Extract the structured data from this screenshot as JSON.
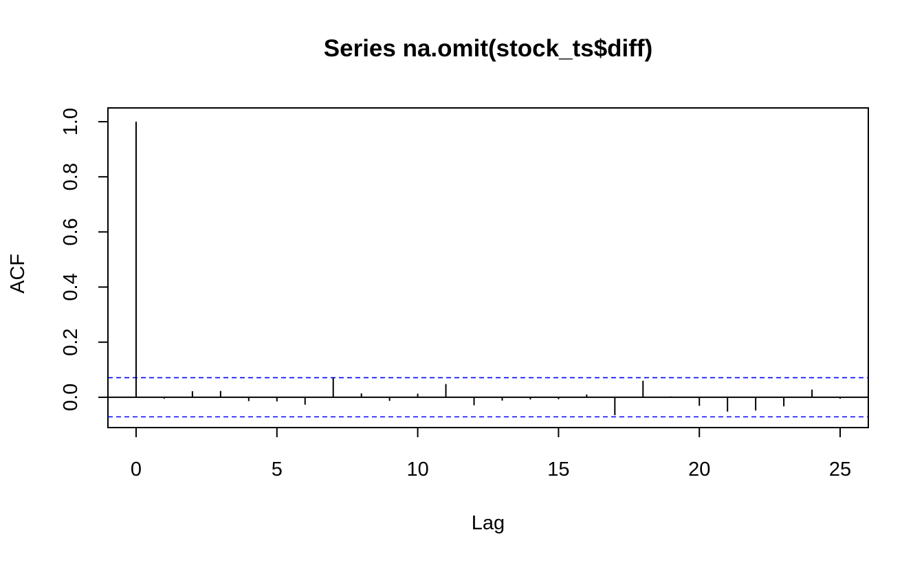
{
  "chart_data": {
    "type": "bar",
    "title": "Series  na.omit(stock_ts$diff)",
    "xlabel": "Lag",
    "ylabel": "ACF",
    "xlim": [
      -1,
      26
    ],
    "ylim": [
      -0.11,
      1.05
    ],
    "x_ticks": [
      0,
      5,
      10,
      15,
      20,
      25
    ],
    "x_tick_labels": [
      "0",
      "5",
      "10",
      "15",
      "20",
      "25"
    ],
    "y_ticks": [
      0.0,
      0.2,
      0.4,
      0.6,
      0.8,
      1.0
    ],
    "y_tick_labels": [
      "0.0",
      "0.2",
      "0.4",
      "0.6",
      "0.8",
      "1.0"
    ],
    "lags": [
      0,
      1,
      2,
      3,
      4,
      5,
      6,
      7,
      8,
      9,
      10,
      11,
      12,
      13,
      14,
      15,
      16,
      17,
      18,
      19,
      20,
      21,
      22,
      23,
      24,
      25
    ],
    "acf": [
      1.0,
      -0.005,
      0.022,
      0.023,
      -0.014,
      -0.015,
      -0.027,
      0.071,
      0.014,
      -0.013,
      0.013,
      0.048,
      -0.029,
      -0.012,
      -0.008,
      -0.007,
      0.01,
      -0.065,
      0.06,
      0.003,
      -0.031,
      -0.052,
      -0.048,
      -0.033,
      0.028,
      -0.005
    ],
    "confidence_bound": 0.071,
    "grid": false,
    "colors": {
      "bars": "#000000",
      "confidence_lines": "#0000ff",
      "zero_line": "#000000"
    }
  }
}
